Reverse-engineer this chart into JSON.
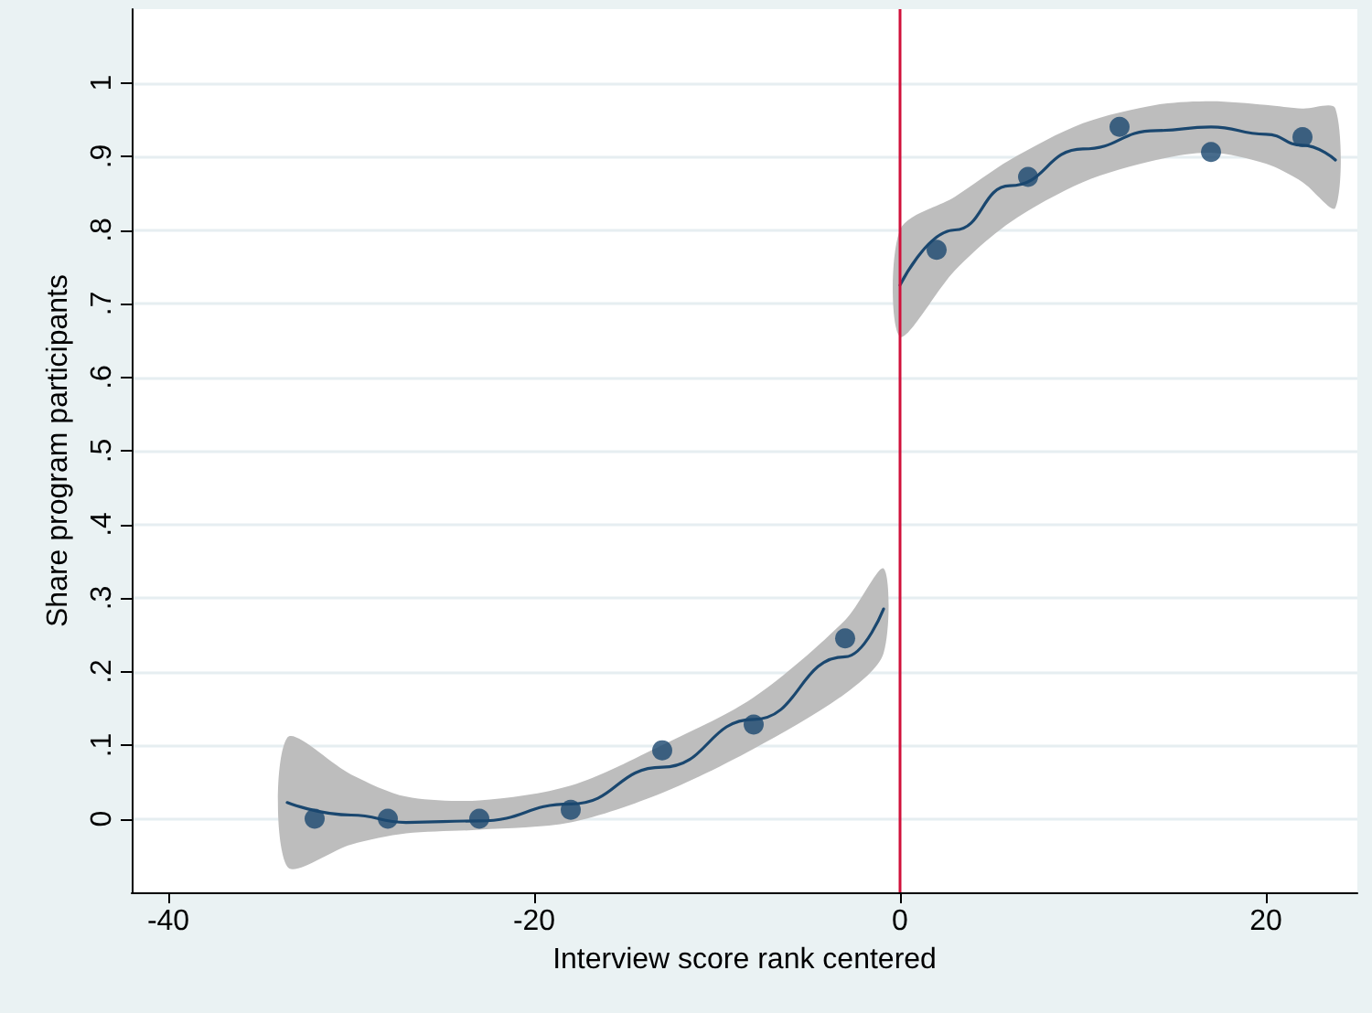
{
  "chart_data": {
    "type": "scatter",
    "xlabel": "Interview score rank centered",
    "ylabel": "Share program participants",
    "xlim": [
      -42,
      25
    ],
    "xticks": [
      -40,
      -20,
      0,
      20
    ],
    "ylim": [
      -0.1,
      1.1
    ],
    "yticks": [
      0,
      {
        "value": 0.1,
        "label": ".1"
      },
      {
        "value": 0.2,
        "label": ".2"
      },
      {
        "value": 0.3,
        "label": ".3"
      },
      {
        "value": 0.4,
        "label": ".4"
      },
      {
        "value": 0.5,
        "label": ".5"
      },
      {
        "value": 0.6,
        "label": ".6"
      },
      {
        "value": 0.7,
        "label": ".7"
      },
      {
        "value": 0.8,
        "label": ".8"
      },
      {
        "value": 0.9,
        "label": ".9"
      },
      1
    ],
    "grid": "y",
    "marker": "circle",
    "series": [
      {
        "color": "#1a476f",
        "x": [
          -32,
          -28,
          -23,
          -18,
          -13,
          -8,
          -3,
          2,
          7,
          12,
          17,
          22
        ],
        "values": [
          0,
          0,
          0,
          0.012,
          0.093,
          0.128,
          0.245,
          0.773,
          0.872,
          0.94,
          0.906,
          0.926
        ]
      },
      {
        "type": "line",
        "color": "#1a476f",
        "marker": "none",
        "x": [
          -33.5,
          -30,
          -27,
          -23,
          -18,
          -13,
          -8,
          -3,
          -0.9
        ],
        "values": [
          0.022,
          0.005,
          -0.005,
          -0.003,
          0.02,
          0.07,
          0.135,
          0.22,
          0.285
        ],
        "lower": [
          -0.065,
          -0.035,
          -0.02,
          -0.015,
          -0.005,
          0.035,
          0.095,
          0.17,
          0.225
        ],
        "upper": [
          0.11,
          0.06,
          0.03,
          0.025,
          0.045,
          0.1,
          0.165,
          0.27,
          0.34
        ]
      },
      {
        "type": "line",
        "color": "#1a476f",
        "marker": "none",
        "x": [
          0,
          3,
          6,
          10,
          14,
          17,
          20,
          22,
          23.8
        ],
        "values": [
          0.725,
          0.8,
          0.86,
          0.91,
          0.935,
          0.94,
          0.93,
          0.915,
          0.895
        ],
        "lower": [
          0.655,
          0.745,
          0.81,
          0.865,
          0.895,
          0.905,
          0.89,
          0.865,
          0.83
        ],
        "upper": [
          0.8,
          0.845,
          0.895,
          0.945,
          0.97,
          0.975,
          0.97,
          0.965,
          0.965
        ]
      }
    ],
    "ref_lines": [
      {
        "axis": "x",
        "value": 0,
        "color": "#d0103a"
      }
    ]
  }
}
